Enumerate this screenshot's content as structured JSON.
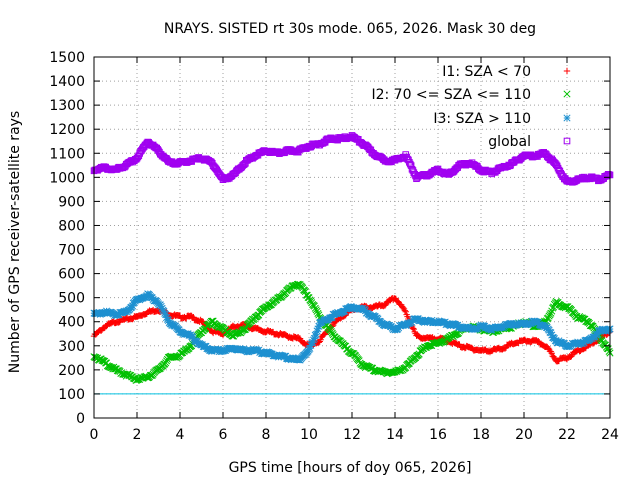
{
  "chart_data": {
    "type": "scatter",
    "title": "NRAYS. SISTED rt 30s mode. 065, 2026. Mask 30 deg",
    "xlabel": "GPS time [hours of doy 065, 2026]",
    "ylabel": "Number of GPS receiver-satellite rays",
    "xlim": [
      0,
      24
    ],
    "ylim": [
      0,
      1500
    ],
    "xticks": [
      0,
      2,
      4,
      6,
      8,
      10,
      12,
      14,
      16,
      18,
      20,
      22,
      24
    ],
    "yticks": [
      0,
      100,
      200,
      300,
      400,
      500,
      600,
      700,
      800,
      900,
      1000,
      1100,
      1200,
      1300,
      1400,
      1500
    ],
    "grid": true,
    "legend_position": "top-right",
    "reference_line": {
      "y": 100,
      "color": "#00c0e0"
    },
    "series": [
      {
        "name": "I1: SZA < 70",
        "marker": "plus",
        "color": "#ff0000",
        "x": [
          0,
          0.5,
          1,
          1.5,
          2,
          2.5,
          3,
          3.5,
          4,
          4.5,
          5,
          5.5,
          6,
          6.5,
          7,
          7.5,
          8,
          8.5,
          9,
          9.5,
          10,
          10.5,
          11,
          11.5,
          12,
          12.5,
          13,
          13.5,
          14,
          14.5,
          15,
          15.5,
          16,
          16.5,
          17,
          17.5,
          18,
          18.5,
          19,
          19.5,
          20,
          20.5,
          21,
          21.5,
          22,
          22.5,
          23,
          23.5,
          24
        ],
        "y": [
          340,
          380,
          400,
          410,
          420,
          440,
          450,
          430,
          420,
          420,
          400,
          360,
          350,
          380,
          385,
          370,
          360,
          350,
          340,
          330,
          300,
          320,
          380,
          420,
          450,
          460,
          460,
          470,
          500,
          440,
          340,
          330,
          330,
          320,
          300,
          290,
          280,
          280,
          290,
          310,
          320,
          320,
          300,
          240,
          250,
          280,
          300,
          330,
          360
        ]
      },
      {
        "name": "I2: 70 <= SZA <= 110",
        "marker": "cross",
        "color": "#00c000",
        "x": [
          0,
          0.5,
          1,
          1.5,
          2,
          2.5,
          3,
          3.5,
          4,
          4.5,
          5,
          5.5,
          6,
          6.5,
          7,
          7.5,
          8,
          8.5,
          9,
          9.5,
          10,
          10.5,
          11,
          11.5,
          12,
          12.5,
          13,
          13.5,
          14,
          14.5,
          15,
          15.5,
          16,
          16.5,
          17,
          17.5,
          18,
          18.5,
          19,
          19.5,
          20,
          20.5,
          21,
          21.5,
          22,
          22.5,
          23,
          23.5,
          24
        ],
        "y": [
          260,
          230,
          200,
          180,
          160,
          170,
          200,
          250,
          260,
          300,
          360,
          400,
          370,
          340,
          370,
          420,
          460,
          490,
          530,
          560,
          500,
          420,
          360,
          310,
          270,
          220,
          200,
          190,
          190,
          210,
          260,
          300,
          310,
          330,
          360,
          380,
          370,
          360,
          370,
          380,
          400,
          380,
          400,
          480,
          460,
          420,
          400,
          340,
          270
        ]
      },
      {
        "name": "I3: SZA > 110",
        "marker": "star",
        "color": "#1e90d0",
        "x": [
          0,
          0.5,
          1,
          1.5,
          2,
          2.5,
          3,
          3.5,
          4,
          4.5,
          5,
          5.5,
          6,
          6.5,
          7,
          7.5,
          8,
          8.5,
          9,
          9.5,
          10,
          10.5,
          11,
          11.5,
          12,
          12.5,
          13,
          13.5,
          14,
          14.5,
          15,
          15.5,
          16,
          16.5,
          17,
          17.5,
          18,
          18.5,
          19,
          19.5,
          20,
          20.5,
          21,
          21.5,
          22,
          22.5,
          23,
          23.5,
          24
        ],
        "y": [
          430,
          440,
          430,
          440,
          490,
          510,
          480,
          400,
          360,
          340,
          300,
          280,
          280,
          290,
          280,
          280,
          270,
          260,
          250,
          240,
          280,
          390,
          420,
          440,
          460,
          450,
          420,
          390,
          370,
          390,
          410,
          400,
          400,
          390,
          380,
          370,
          380,
          370,
          380,
          390,
          390,
          400,
          380,
          320,
          300,
          310,
          320,
          360,
          370
        ]
      },
      {
        "name": "global",
        "marker": "square",
        "color": "#a000f0",
        "x": [
          0,
          0.5,
          1,
          1.5,
          2,
          2.5,
          3,
          3.5,
          4,
          4.5,
          5,
          5.5,
          6,
          6.5,
          7,
          7.5,
          8,
          8.5,
          9,
          9.5,
          10,
          10.5,
          11,
          11.5,
          12,
          12.5,
          13,
          13.5,
          14,
          14.5,
          15,
          15.5,
          16,
          16.5,
          17,
          17.5,
          18,
          18.5,
          19,
          19.5,
          20,
          20.5,
          21,
          21.5,
          22,
          22.5,
          23,
          23.5,
          24
        ],
        "y": [
          1030,
          1040,
          1030,
          1050,
          1080,
          1150,
          1110,
          1060,
          1060,
          1070,
          1080,
          1060,
          990,
          1010,
          1060,
          1090,
          1110,
          1100,
          1110,
          1110,
          1130,
          1140,
          1160,
          1160,
          1170,
          1140,
          1100,
          1070,
          1070,
          1090,
          1000,
          1010,
          1030,
          1010,
          1050,
          1060,
          1030,
          1020,
          1040,
          1060,
          1090,
          1090,
          1100,
          1050,
          980,
          990,
          1000,
          990,
          1010
        ]
      }
    ]
  }
}
